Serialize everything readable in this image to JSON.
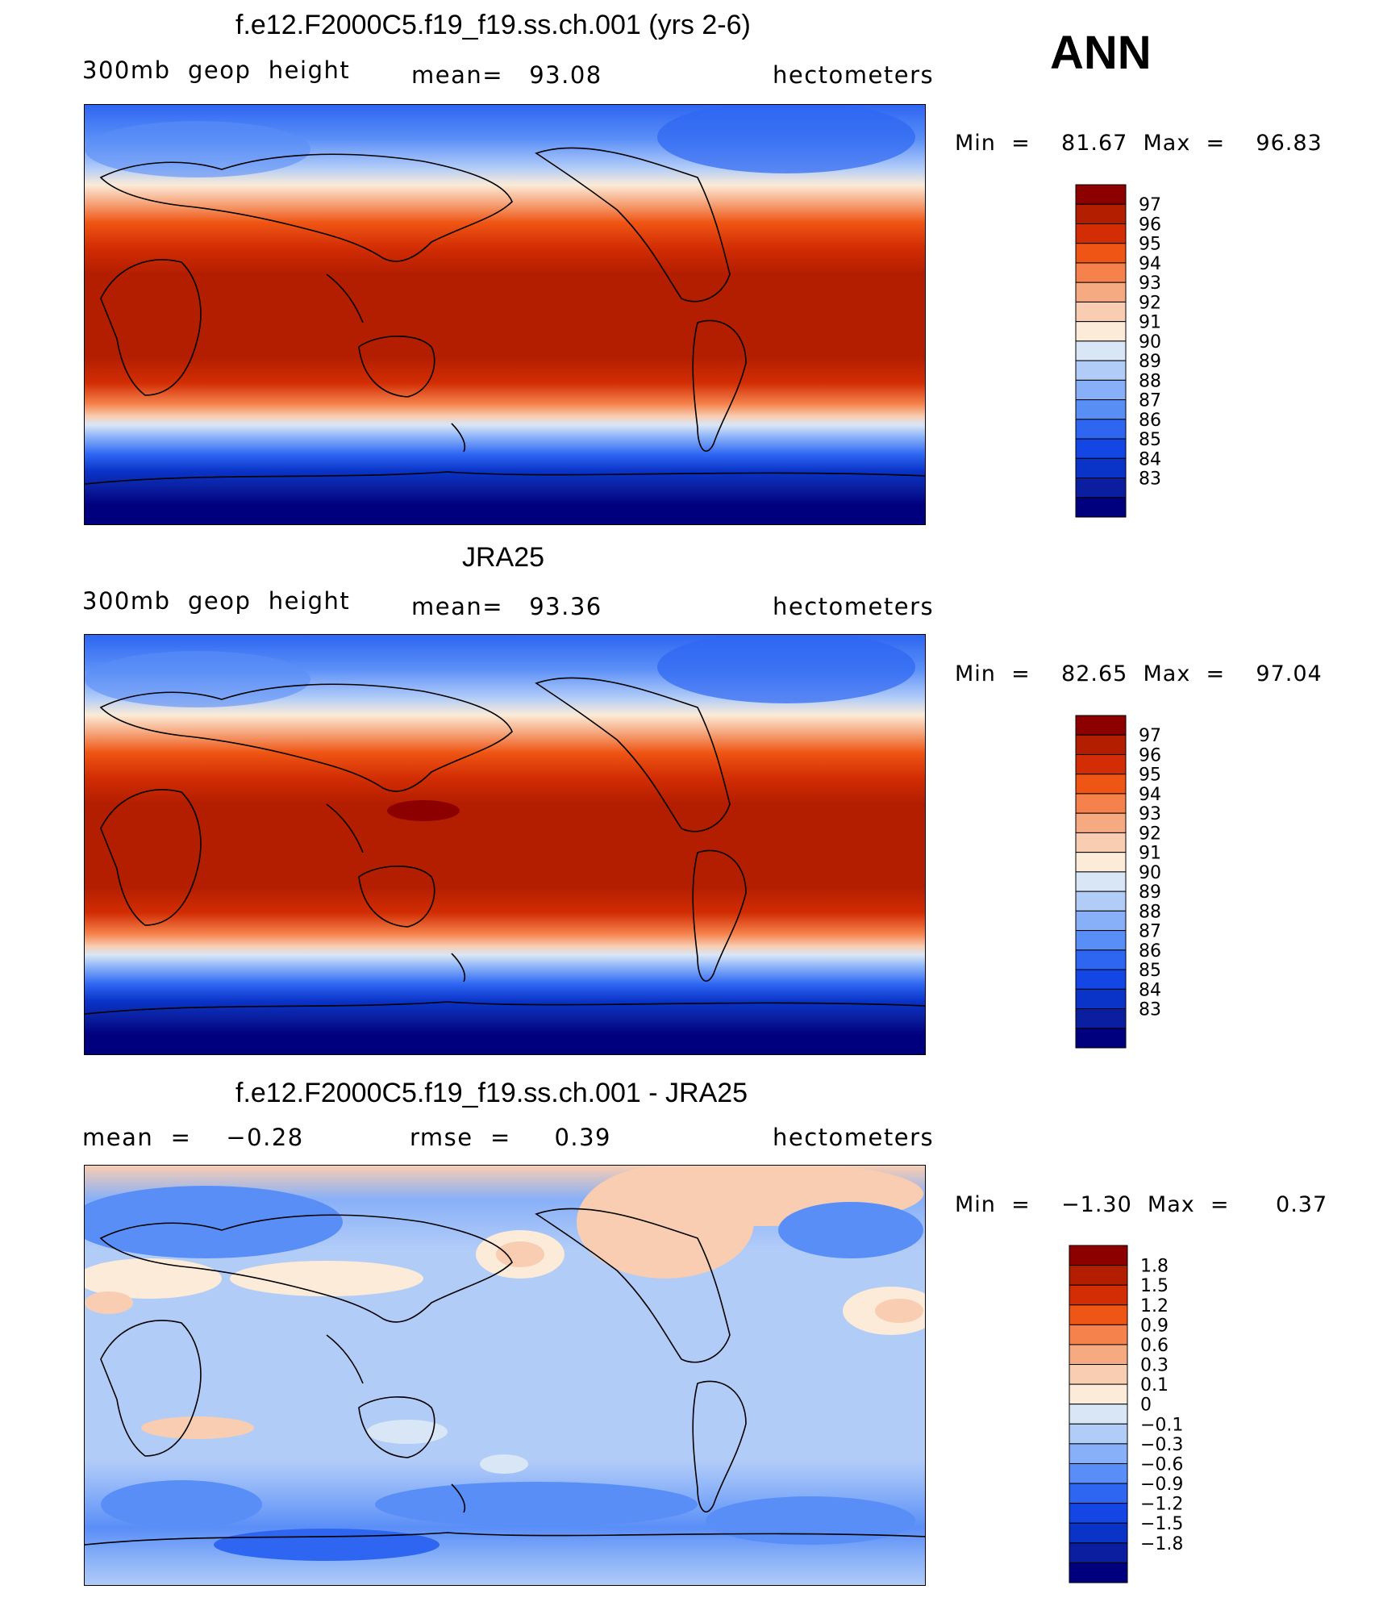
{
  "season": "ANN",
  "colors": {
    "abs_scale": [
      "#00007f",
      "#0a1e9f",
      "#0a34c8",
      "#1446e6",
      "#2e66f2",
      "#5a8ef7",
      "#88b0f8",
      "#b2ccf8",
      "#d8e6f6",
      "#fbebd8",
      "#f8cdb2",
      "#f6aa82",
      "#f5824c",
      "#ef5514",
      "#d22d04",
      "#b41e00",
      "#8c0000"
    ],
    "diff_scale": [
      "#00007f",
      "#0a1e9f",
      "#0a34c8",
      "#1446e6",
      "#2e66f2",
      "#5a8ef7",
      "#88b0f8",
      "#b2ccf8",
      "#d8e6f6",
      "#fbebd8",
      "#f8cdb2",
      "#f6aa82",
      "#f5824c",
      "#ef5514",
      "#d22d04",
      "#b41e00",
      "#8c0000"
    ]
  },
  "panels": [
    {
      "title": "f.e12.F2000C5.f19_f19.ss.ch.001 (yrs 2-6)",
      "left_label": "300mb  geop  height",
      "center_label": "mean=   93.08",
      "right_label": "hectometers",
      "minmax": "Min  =    81.67  Max  =    96.83",
      "colorbar_labels": [
        "97",
        "96",
        "95",
        "94",
        "93",
        "92",
        "91",
        "90",
        "89",
        "88",
        "87",
        "86",
        "85",
        "84",
        "83"
      ]
    },
    {
      "title": "JRA25",
      "left_label": "300mb  geop  height",
      "center_label": "mean=   93.36",
      "right_label": "hectometers",
      "minmax": "Min  =    82.65  Max  =    97.04",
      "colorbar_labels": [
        "97",
        "96",
        "95",
        "94",
        "93",
        "92",
        "91",
        "90",
        "89",
        "88",
        "87",
        "86",
        "85",
        "84",
        "83"
      ]
    },
    {
      "title": "f.e12.F2000C5.f19_f19.ss.ch.001 - JRA25",
      "left_label": "mean  =    −0.28",
      "center_label": "rmse  =     0.39",
      "right_label": "hectometers",
      "minmax": "Min  =    −1.30  Max  =      0.37",
      "colorbar_labels": [
        "1.8",
        "1.5",
        "1.2",
        "0.9",
        "0.6",
        "0.3",
        "0.1",
        "0",
        "−0.1",
        "−0.3",
        "−0.6",
        "−0.9",
        "−1.2",
        "−1.5",
        "−1.8"
      ]
    }
  ]
}
